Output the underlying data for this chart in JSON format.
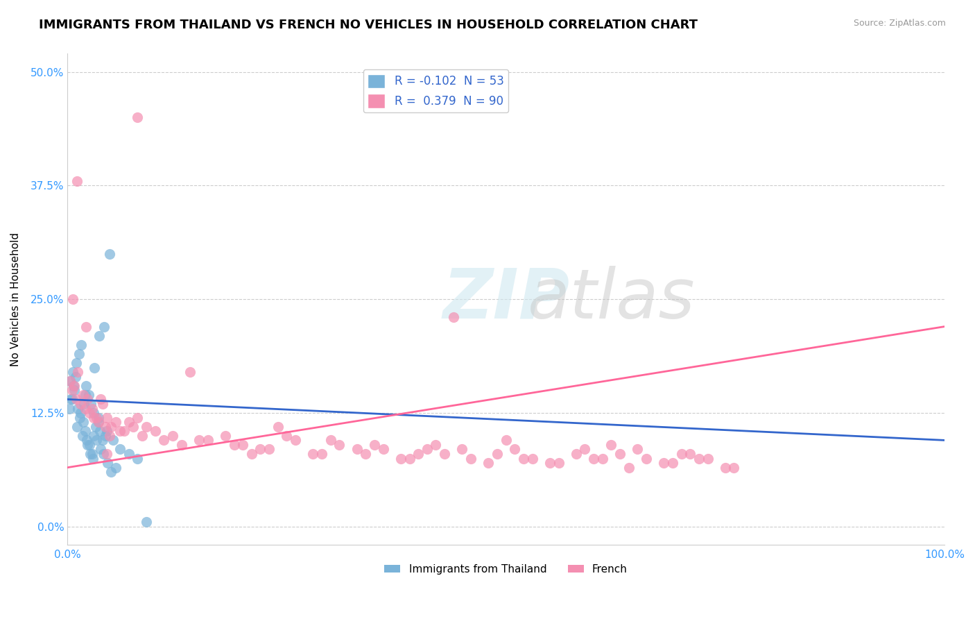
{
  "title": "IMMIGRANTS FROM THAILAND VS FRENCH NO VEHICLES IN HOUSEHOLD CORRELATION CHART",
  "source_text": "Source: ZipAtlas.com",
  "xlabel_blue": "Immigrants from Thailand",
  "xlabel_pink": "French",
  "ylabel": "No Vehicles in Household",
  "legend": [
    {
      "label": "R = -0.102  N = 53",
      "color": "#aec6e8"
    },
    {
      "label": "R =  0.379  N = 90",
      "color": "#f4b8c1"
    }
  ],
  "blue_scatter": {
    "x": [
      0.5,
      0.8,
      1.2,
      1.5,
      1.8,
      2.0,
      2.2,
      2.5,
      2.8,
      3.0,
      3.2,
      3.5,
      3.8,
      4.0,
      4.5,
      5.0,
      0.3,
      0.6,
      1.0,
      1.3,
      1.6,
      2.1,
      2.4,
      2.7,
      3.1,
      3.6,
      4.2,
      4.8,
      0.2,
      0.9,
      1.1,
      1.4,
      1.7,
      2.3,
      2.6,
      2.9,
      3.3,
      3.7,
      4.1,
      4.6,
      5.5,
      0.4,
      0.7,
      1.9,
      2.0,
      3.0,
      3.5,
      4.3,
      5.2,
      6.0,
      7.0,
      8.0,
      9.0
    ],
    "y": [
      14.0,
      15.0,
      13.0,
      12.5,
      11.5,
      10.5,
      9.5,
      9.0,
      8.0,
      10.0,
      11.0,
      12.0,
      8.5,
      9.5,
      10.5,
      6.0,
      16.0,
      17.0,
      18.0,
      19.0,
      20.0,
      15.5,
      14.5,
      13.5,
      17.5,
      21.0,
      22.0,
      30.0,
      13.0,
      16.5,
      11.0,
      12.0,
      10.0,
      9.0,
      8.0,
      7.5,
      9.5,
      10.5,
      8.0,
      7.0,
      6.5,
      14.0,
      15.5,
      13.5,
      14.5,
      12.5,
      11.5,
      10.0,
      9.5,
      8.5,
      8.0,
      7.5,
      0.5
    ]
  },
  "pink_scatter": {
    "x": [
      0.5,
      1.0,
      1.5,
      2.0,
      2.5,
      3.0,
      3.5,
      4.0,
      4.5,
      5.0,
      6.0,
      7.0,
      8.0,
      9.0,
      10.0,
      12.0,
      15.0,
      18.0,
      20.0,
      22.0,
      25.0,
      28.0,
      30.0,
      33.0,
      35.0,
      38.0,
      40.0,
      42.0,
      45.0,
      48.0,
      50.0,
      52.0,
      55.0,
      58.0,
      60.0,
      62.0,
      65.0,
      68.0,
      70.0,
      72.0,
      75.0,
      0.3,
      0.8,
      1.2,
      1.8,
      2.3,
      2.8,
      3.3,
      3.8,
      4.3,
      4.8,
      5.5,
      6.5,
      7.5,
      8.5,
      11.0,
      13.0,
      16.0,
      19.0,
      21.0,
      23.0,
      26.0,
      29.0,
      31.0,
      34.0,
      36.0,
      39.0,
      41.0,
      43.0,
      46.0,
      49.0,
      51.0,
      53.0,
      56.0,
      59.0,
      61.0,
      63.0,
      66.0,
      69.0,
      71.0,
      73.0,
      76.0,
      0.6,
      1.1,
      2.1,
      4.5,
      8.0,
      14.0,
      24.0,
      44.0,
      64.0
    ],
    "y": [
      15.0,
      14.0,
      13.5,
      13.0,
      12.5,
      12.0,
      11.5,
      13.5,
      12.0,
      11.0,
      10.5,
      11.5,
      12.0,
      11.0,
      10.5,
      10.0,
      9.5,
      10.0,
      9.0,
      8.5,
      10.0,
      8.0,
      9.5,
      8.5,
      9.0,
      7.5,
      8.0,
      9.0,
      8.5,
      7.0,
      9.5,
      7.5,
      7.0,
      8.0,
      7.5,
      9.0,
      8.5,
      7.0,
      8.0,
      7.5,
      6.5,
      16.0,
      15.5,
      17.0,
      14.5,
      14.0,
      13.0,
      12.0,
      14.0,
      11.0,
      10.0,
      11.5,
      10.5,
      11.0,
      10.0,
      9.5,
      9.0,
      9.5,
      9.0,
      8.0,
      8.5,
      9.5,
      8.0,
      9.0,
      8.0,
      8.5,
      7.5,
      8.5,
      8.0,
      7.5,
      8.0,
      8.5,
      7.5,
      7.0,
      8.5,
      7.5,
      8.0,
      7.5,
      7.0,
      8.0,
      7.5,
      6.5,
      25.0,
      38.0,
      22.0,
      8.0,
      45.0,
      17.0,
      11.0,
      23.0,
      6.5
    ]
  },
  "blue_trend": {
    "x_start": 0.0,
    "x_end": 100.0,
    "y_start": 14.0,
    "y_end": 9.5
  },
  "pink_trend": {
    "x_start": 0.0,
    "x_end": 100.0,
    "y_start": 6.5,
    "y_end": 22.0
  },
  "xlim": [
    0,
    100
  ],
  "ylim": [
    -2,
    52
  ],
  "yticks": [
    0,
    12.5,
    25,
    37.5,
    50
  ],
  "ytick_labels": [
    "0.0%",
    "12.5%",
    "25.0%",
    "37.5%",
    "50.0%"
  ],
  "xticks": [
    0,
    100
  ],
  "xtick_labels": [
    "0.0%",
    "100.0%"
  ],
  "grid_color": "#cccccc",
  "bg_color": "#ffffff",
  "blue_color": "#7ab3d9",
  "pink_color": "#f48fb1",
  "blue_line_color": "#3366cc",
  "pink_line_color": "#ff6699",
  "watermark_zip": "ZIP",
  "watermark_atlas": "atlas",
  "title_fontsize": 13,
  "axis_label_fontsize": 11
}
